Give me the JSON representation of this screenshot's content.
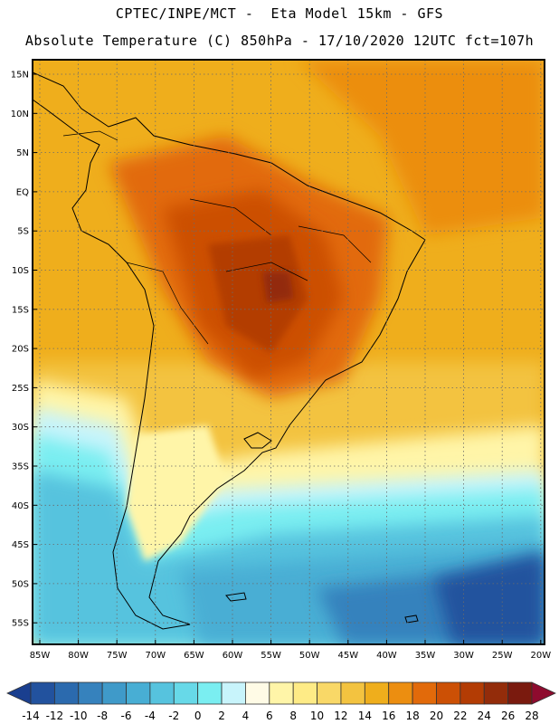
{
  "header": {
    "line1": "CPTEC/INPE/MCT -  Eta Model 15km - GFS",
    "line2": "Absolute Temperature (C) 850hPa - 17/10/2020 12UTC fct=107h"
  },
  "map": {
    "lat_labels": [
      "15N",
      "10N",
      "5N",
      "EQ",
      "5S",
      "10S",
      "15S",
      "20S",
      "25S",
      "30S",
      "35S",
      "40S",
      "45S",
      "50S",
      "55S"
    ],
    "lon_labels": [
      "85W",
      "80W",
      "75W",
      "70W",
      "65W",
      "60W",
      "55W",
      "50W",
      "45W",
      "40W",
      "35W",
      "30W",
      "25W",
      "20W"
    ],
    "grid": "dotted"
  },
  "colorbar": {
    "labels": [
      "-14",
      "-12",
      "-10",
      "-8",
      "-6",
      "-4",
      "-2",
      "0",
      "2",
      "4",
      "6",
      "8",
      "10",
      "12",
      "14",
      "16",
      "18",
      "20",
      "22",
      "24",
      "26",
      "28"
    ],
    "colors": [
      "#1a3f8f",
      "#22529e",
      "#2b6aae",
      "#3682bd",
      "#3f9ac9",
      "#48aed4",
      "#56c3de",
      "#67d9e8",
      "#7aeef1",
      "#c8f4fb",
      "#fffbe6",
      "#fff5a8",
      "#feeb86",
      "#f9d867",
      "#f3c340",
      "#efae1c",
      "#ec8e10",
      "#e26a0a",
      "#cc5005",
      "#b33c04",
      "#932c0a",
      "#7a1a0e",
      "#8e0b2e"
    ]
  }
}
